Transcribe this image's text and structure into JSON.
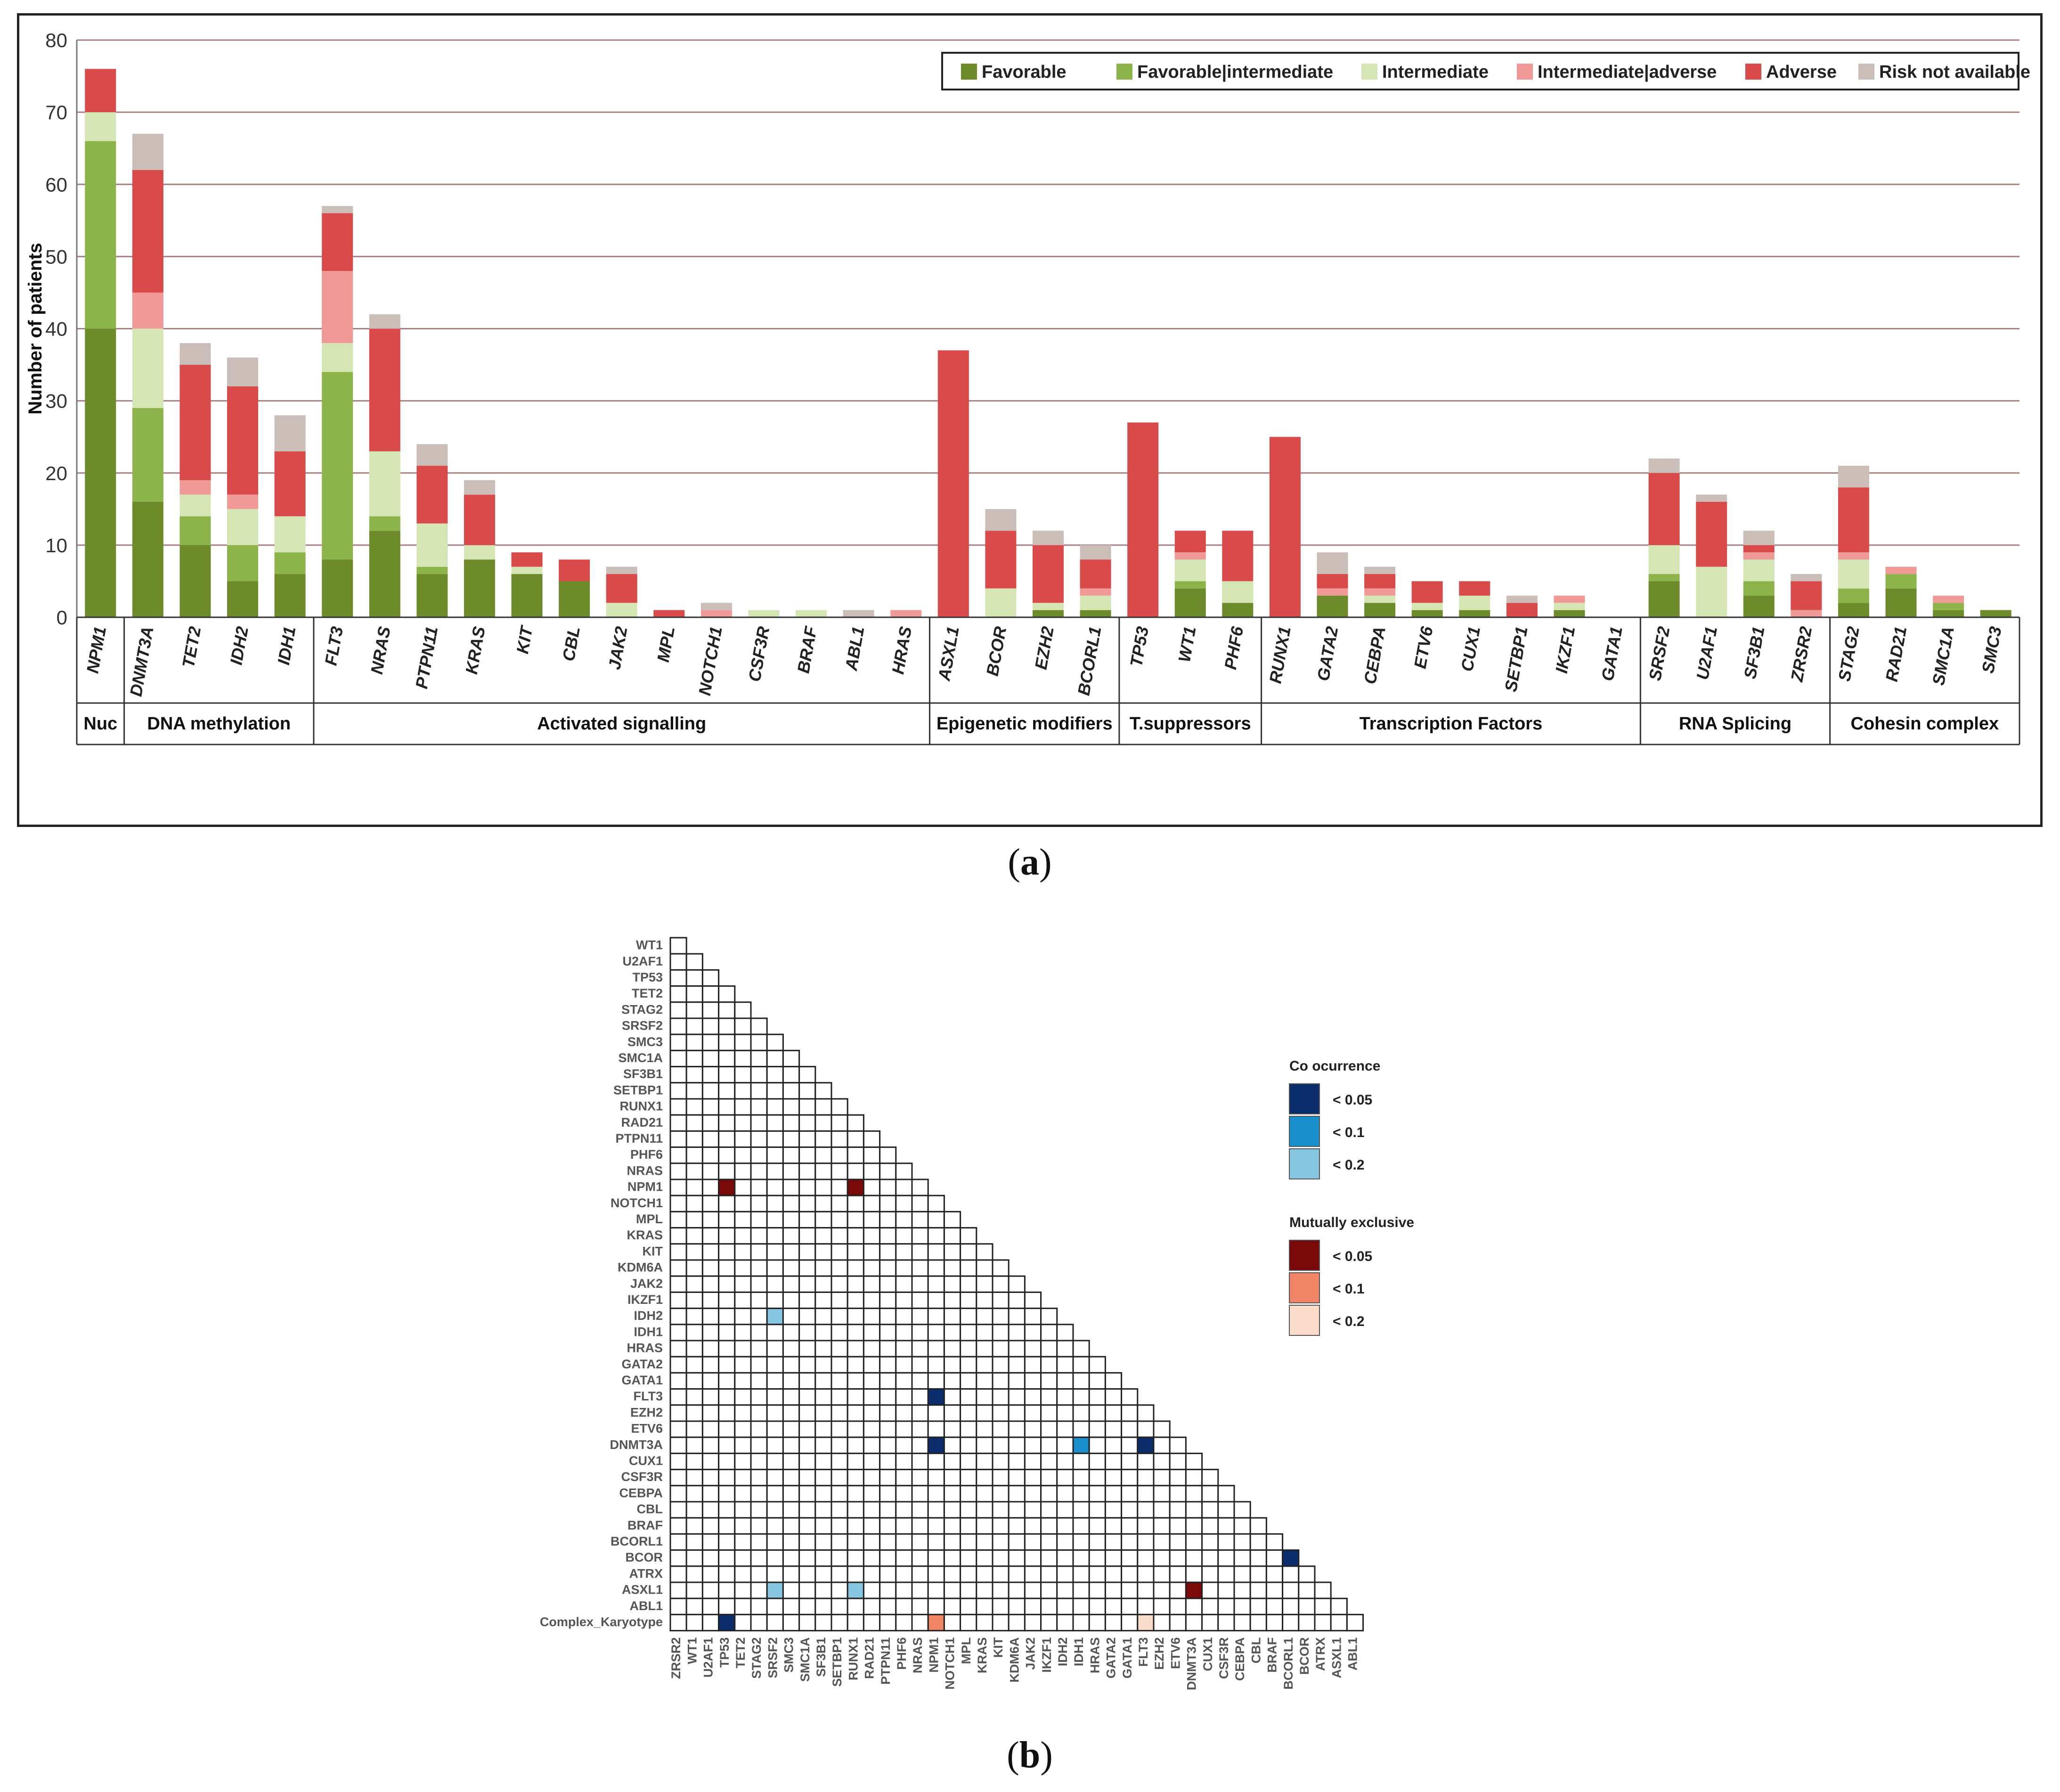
{
  "captions": {
    "a_open": "(",
    "a_letter": "a",
    "a_close": ")",
    "b_open": "(",
    "b_letter": "b",
    "b_close": ")"
  },
  "colors": {
    "Favorable": "#6e8b2c",
    "Favorable|intermediate": "#8db44a",
    "Intermediate": "#d6e5b4",
    "Intermediate|adverse": "#ef9a96",
    "Adverse": "#d94b4b",
    "Risk not available": "#cbbdb8",
    "co_005": "#0b2d6b",
    "co_01": "#1a8fcc",
    "co_02": "#86c6e1",
    "me_005": "#7a0a0a",
    "me_01": "#f08466",
    "me_02": "#fbdccb"
  },
  "chart_data": [
    {
      "type": "bar",
      "stacked": true,
      "ylabel": "Number of patients",
      "xlabel": "",
      "ylim": [
        0,
        80
      ],
      "yticks": [
        0,
        10,
        20,
        30,
        40,
        50,
        60,
        70,
        80
      ],
      "grid": true,
      "legend_position": "top-right",
      "legend": [
        "Favorable",
        "Favorable|intermediate",
        "Intermediate",
        "Intermediate|adverse",
        "Adverse",
        "Risk not available"
      ],
      "categories": [
        "NPM1",
        "DNMT3A",
        "TET2",
        "IDH2",
        "IDH1",
        "FLT3",
        "NRAS",
        "PTPN11",
        "KRAS",
        "KIT",
        "CBL",
        "JAK2",
        "MPL",
        "NOTCH1",
        "CSF3R",
        "BRAF",
        "ABL1",
        "HRAS",
        "ASXL1",
        "BCOR",
        "EZH2",
        "BCORL1",
        "TP53",
        "WT1",
        "PHF6",
        "RUNX1",
        "GATA2",
        "CEBPA",
        "ETV6",
        "CUX1",
        "SETBP1",
        "IKZF1",
        "GATA1",
        "SRSF2",
        "U2AF1",
        "SF3B1",
        "ZRSR2",
        "STAG2",
        "RAD21",
        "SMC1A",
        "SMC3"
      ],
      "series": [
        {
          "name": "Favorable",
          "values": [
            40,
            16,
            10,
            5,
            6,
            8,
            12,
            6,
            8,
            6,
            5,
            0,
            0,
            0,
            0,
            0,
            0,
            0,
            0,
            0,
            1,
            1,
            0,
            4,
            2,
            0,
            3,
            2,
            1,
            1,
            0,
            1,
            0,
            5,
            0,
            3,
            0,
            2,
            4,
            1,
            1
          ]
        },
        {
          "name": "Favorable|intermediate",
          "values": [
            26,
            13,
            4,
            5,
            3,
            26,
            2,
            1,
            0,
            0,
            0,
            0,
            0,
            0,
            0,
            0,
            0,
            0,
            0,
            0,
            0,
            0,
            0,
            1,
            0,
            0,
            0,
            0,
            0,
            0,
            0,
            0,
            0,
            1,
            0,
            2,
            0,
            2,
            2,
            1,
            0
          ]
        },
        {
          "name": "Intermediate",
          "values": [
            4,
            11,
            3,
            5,
            5,
            4,
            9,
            6,
            2,
            1,
            0,
            2,
            0,
            0,
            1,
            1,
            0,
            0,
            0,
            4,
            1,
            2,
            0,
            3,
            3,
            0,
            0,
            1,
            1,
            2,
            0,
            1,
            0,
            4,
            7,
            3,
            0,
            4,
            0,
            0,
            0
          ]
        },
        {
          "name": "Intermediate|adverse",
          "values": [
            0,
            5,
            2,
            2,
            0,
            10,
            0,
            0,
            0,
            0,
            0,
            0,
            0,
            1,
            0,
            0,
            0,
            1,
            0,
            0,
            0,
            1,
            0,
            1,
            0,
            0,
            1,
            1,
            0,
            0,
            0,
            1,
            0,
            0,
            0,
            1,
            1,
            1,
            1,
            1,
            0
          ]
        },
        {
          "name": "Adverse",
          "values": [
            6,
            17,
            16,
            15,
            9,
            8,
            17,
            8,
            7,
            2,
            3,
            4,
            1,
            0,
            0,
            0,
            0,
            0,
            37,
            8,
            8,
            4,
            27,
            3,
            7,
            25,
            2,
            2,
            3,
            2,
            2,
            0,
            0,
            10,
            9,
            1,
            4,
            9,
            0,
            0,
            0
          ]
        },
        {
          "name": "Risk not available",
          "values": [
            0,
            5,
            3,
            4,
            5,
            1,
            2,
            3,
            2,
            0,
            0,
            1,
            0,
            1,
            0,
            0,
            1,
            0,
            0,
            3,
            2,
            2,
            0,
            0,
            0,
            0,
            3,
            1,
            0,
            0,
            1,
            0,
            0,
            2,
            1,
            2,
            1,
            3,
            0,
            0,
            0
          ]
        }
      ],
      "groups": [
        {
          "label": "Nuc",
          "count": 1
        },
        {
          "label": "DNA methylation",
          "count": 4
        },
        {
          "label": "Activated signalling",
          "count": 13
        },
        {
          "label": "Epigenetic modifiers",
          "count": 4
        },
        {
          "label": "T.suppressors",
          "count": 3
        },
        {
          "label": "Transcription Factors",
          "count": 8
        },
        {
          "label": "RNA Splicing",
          "count": 4
        },
        {
          "label": "Cohesin complex",
          "count": 4
        }
      ]
    },
    {
      "type": "heatmap",
      "rows": [
        "WT1",
        "U2AF1",
        "TP53",
        "TET2",
        "STAG2",
        "SRSF2",
        "SMC3",
        "SMC1A",
        "SF3B1",
        "SETBP1",
        "RUNX1",
        "RAD21",
        "PTPN11",
        "PHF6",
        "NRAS",
        "NPM1",
        "NOTCH1",
        "MPL",
        "KRAS",
        "KIT",
        "KDM6A",
        "JAK2",
        "IKZF1",
        "IDH2",
        "IDH1",
        "HRAS",
        "GATA2",
        "GATA1",
        "FLT3",
        "EZH2",
        "ETV6",
        "DNMT3A",
        "CUX1",
        "CSF3R",
        "CEBPA",
        "CBL",
        "BRAF",
        "BCORL1",
        "BCOR",
        "ATRX",
        "ASXL1",
        "ABL1",
        "Complex_Karyotype"
      ],
      "columns": [
        "ZRSR2",
        "WT1",
        "U2AF1",
        "TP53",
        "TET2",
        "STAG2",
        "SRSF2",
        "SMC3",
        "SMC1A",
        "SF3B1",
        "SETBP1",
        "RUNX1",
        "RAD21",
        "PTPN11",
        "PHF6",
        "NRAS",
        "NPM1",
        "NOTCH1",
        "MPL",
        "KRAS",
        "KIT",
        "KDM6A",
        "JAK2",
        "IKZF1",
        "IDH2",
        "IDH1",
        "HRAS",
        "GATA2",
        "GATA1",
        "FLT3",
        "EZH2",
        "ETV6",
        "DNMT3A",
        "CUX1",
        "CSF3R",
        "CEBPA",
        "CBL",
        "BRAF",
        "BCORL1",
        "BCOR",
        "ATRX",
        "ASXL1",
        "ABL1"
      ],
      "legend": {
        "co_title": "Co ocurrence",
        "me_title": "Mutually exclusive",
        "co_levels": [
          "< 0.05",
          "< 0.1",
          "< 0.2"
        ],
        "me_levels": [
          "< 0.05",
          "< 0.1",
          "< 0.2"
        ]
      },
      "cells": [
        {
          "row": "NPM1",
          "col": "TP53",
          "kind": "me",
          "level": "< 0.05"
        },
        {
          "row": "NPM1",
          "col": "RUNX1",
          "kind": "me",
          "level": "< 0.05"
        },
        {
          "row": "IDH2",
          "col": "SRSF2",
          "kind": "co",
          "level": "< 0.2"
        },
        {
          "row": "FLT3",
          "col": "NPM1",
          "kind": "co",
          "level": "< 0.05"
        },
        {
          "row": "DNMT3A",
          "col": "NPM1",
          "kind": "co",
          "level": "< 0.05"
        },
        {
          "row": "DNMT3A",
          "col": "IDH1",
          "kind": "co",
          "level": "< 0.1"
        },
        {
          "row": "DNMT3A",
          "col": "FLT3",
          "kind": "co",
          "level": "< 0.05"
        },
        {
          "row": "BCOR",
          "col": "BCORL1",
          "kind": "co",
          "level": "< 0.05"
        },
        {
          "row": "ASXL1",
          "col": "SRSF2",
          "kind": "co",
          "level": "< 0.2"
        },
        {
          "row": "ASXL1",
          "col": "RUNX1",
          "kind": "co",
          "level": "< 0.2"
        },
        {
          "row": "ASXL1",
          "col": "DNMT3A",
          "kind": "me",
          "level": "< 0.05"
        },
        {
          "row": "Complex_Karyotype",
          "col": "TP53",
          "kind": "co",
          "level": "< 0.05"
        },
        {
          "row": "Complex_Karyotype",
          "col": "NPM1",
          "kind": "me",
          "level": "< 0.1"
        },
        {
          "row": "Complex_Karyotype",
          "col": "FLT3",
          "kind": "me",
          "level": "< 0.2"
        }
      ]
    }
  ]
}
